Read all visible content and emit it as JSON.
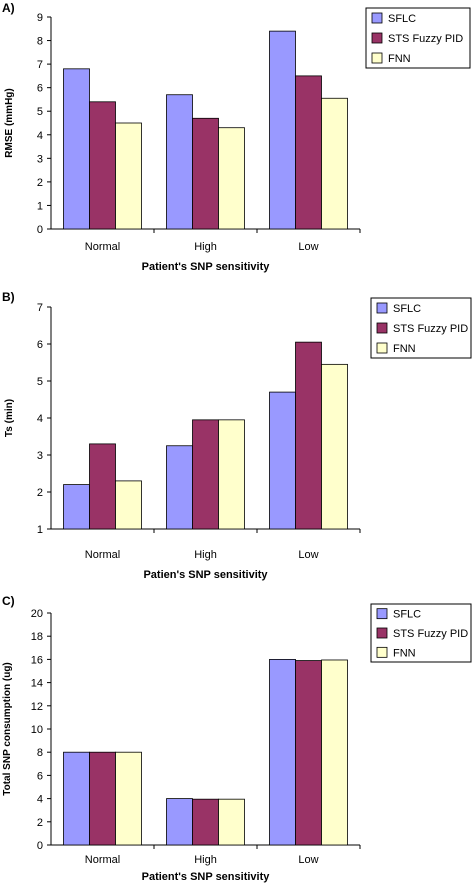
{
  "colors": {
    "SFLC": "#9999FF",
    "STS Fuzzy PID": "#993366",
    "FNN": "#FFFFCC",
    "axis": "#000000",
    "bar_stroke": "#000000"
  },
  "chart_data": [
    {
      "panel_label": "A)",
      "type": "bar",
      "categories": [
        "Normal",
        "High",
        "Low"
      ],
      "series": [
        {
          "name": "SFLC",
          "values": [
            6.8,
            5.7,
            8.4
          ]
        },
        {
          "name": "STS Fuzzy PID",
          "values": [
            5.4,
            4.7,
            6.5
          ]
        },
        {
          "name": "FNN",
          "values": [
            4.5,
            4.3,
            5.55
          ]
        }
      ],
      "title": "",
      "xlabel": "Patient's SNP sensitivity",
      "ylabel": "RMSE (mmHg)",
      "ylim": [
        0,
        9
      ],
      "yticks": [
        0,
        1,
        2,
        3,
        4,
        5,
        6,
        7,
        8,
        9
      ],
      "legend": "top-right",
      "grid": false
    },
    {
      "panel_label": "B)",
      "type": "bar",
      "categories": [
        "Normal",
        "High",
        "Low"
      ],
      "series": [
        {
          "name": "SFLC",
          "values": [
            2.2,
            3.25,
            4.7
          ]
        },
        {
          "name": "STS Fuzzy PID",
          "values": [
            3.3,
            3.95,
            6.05
          ]
        },
        {
          "name": "FNN",
          "values": [
            2.3,
            3.95,
            5.45
          ]
        }
      ],
      "title": "",
      "xlabel": "Patien's SNP sensitivity",
      "ylabel": "Ts (min)",
      "ylim": [
        1,
        7
      ],
      "yticks": [
        1,
        2,
        3,
        4,
        5,
        6,
        7
      ],
      "legend": "top-right",
      "grid": false
    },
    {
      "panel_label": "C)",
      "type": "bar",
      "categories": [
        "Normal",
        "High",
        "Low"
      ],
      "series": [
        {
          "name": "SFLC",
          "values": [
            8.0,
            4.0,
            16.0
          ]
        },
        {
          "name": "STS Fuzzy PID",
          "values": [
            8.0,
            3.95,
            15.9
          ]
        },
        {
          "name": "FNN",
          "values": [
            8.0,
            3.95,
            15.95
          ]
        }
      ],
      "title": "",
      "xlabel": "Patient's SNP sensitivity",
      "ylabel": "Total SNP consumption (ug)",
      "ylim": [
        0,
        20
      ],
      "yticks": [
        0,
        2,
        4,
        6,
        8,
        10,
        12,
        14,
        16,
        18,
        20
      ],
      "legend": "top-right",
      "grid": false
    }
  ]
}
